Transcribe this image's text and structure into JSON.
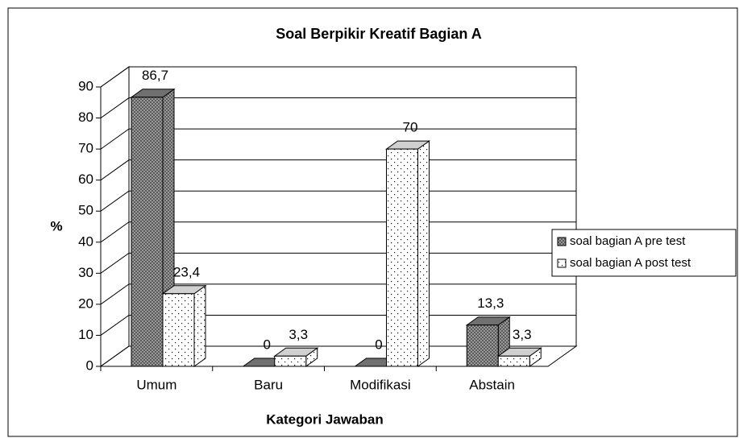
{
  "chart_data": {
    "type": "bar3d",
    "title": "Soal Berpikir Kreatif Bagian A",
    "x_label": "Kategori Jawaban",
    "y_label": "%",
    "categories": [
      "Umum",
      "Baru",
      "Modifikasi",
      "Abstain"
    ],
    "series": [
      {
        "name": "soal bagian A pre test",
        "color": "#808080",
        "values": [
          86.7,
          0,
          0,
          13.3
        ],
        "value_labels": [
          "86,7",
          "0",
          "0",
          "13,3"
        ]
      },
      {
        "name": "soal bagian A post test",
        "color": "#ffffff",
        "values": [
          23.4,
          3.3,
          70,
          3.3
        ],
        "value_labels": [
          "23,4",
          "3,3",
          "70",
          "3,3"
        ]
      }
    ],
    "ylim": [
      0,
      90
    ],
    "yticks": [
      0,
      10,
      20,
      30,
      40,
      50,
      60,
      70,
      80,
      90
    ],
    "grid": true,
    "legend": "right"
  }
}
